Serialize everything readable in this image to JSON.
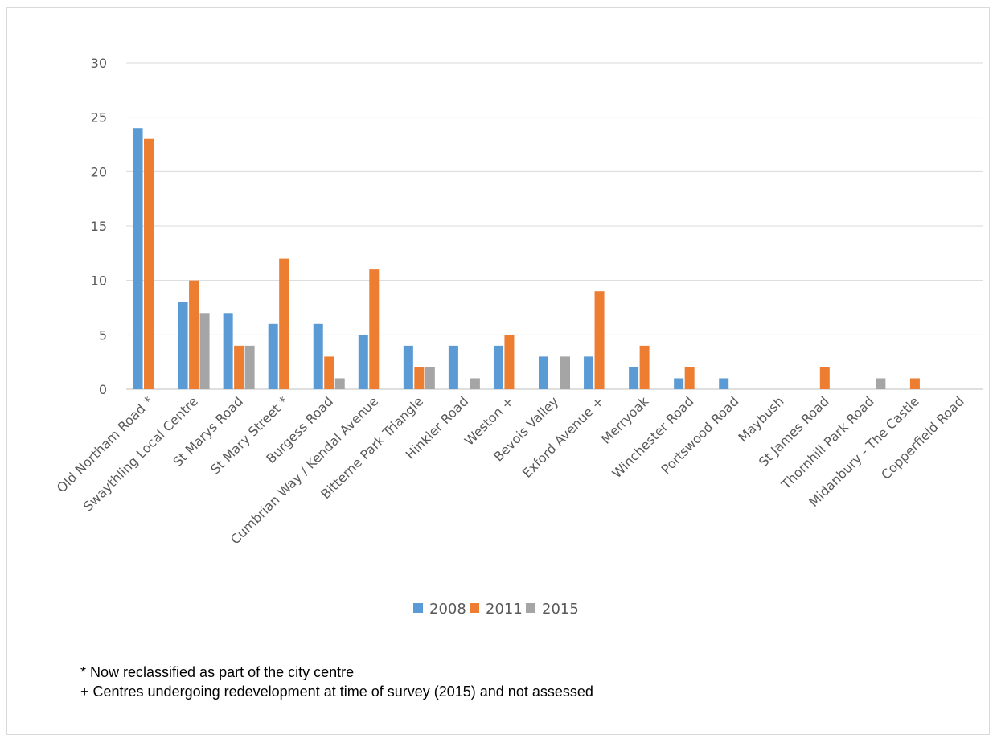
{
  "chart_data": {
    "type": "bar",
    "title": "",
    "xlabel": "",
    "ylabel": "",
    "ylim": [
      0,
      30
    ],
    "yticks": [
      0,
      5,
      10,
      15,
      20,
      25,
      30
    ],
    "grid": true,
    "legend_position": "bottom",
    "categories": [
      "Old Northam Road *",
      "Swaythling Local Centre",
      "St Marys Road",
      "St Mary Street *",
      "Burgess Road",
      "Cumbrian Way / Kendal Avenue",
      "Bitterne Park Triangle",
      "Hinkler Road",
      "Weston +",
      "Bevois Valley",
      "Exford Avenue +",
      "Merryoak",
      "Winchester Road",
      "Portswood Road",
      "Maybush",
      "St James Road",
      "Thornhill Park Road",
      "Midanbury - The Castle",
      "Copperfield Road"
    ],
    "series": [
      {
        "name": "2008",
        "color": "#5b9bd5",
        "values": [
          24,
          8,
          7,
          6,
          6,
          5,
          4,
          4,
          4,
          3,
          3,
          2,
          1,
          1,
          null,
          null,
          null,
          null,
          null
        ]
      },
      {
        "name": "2011",
        "color": "#ed7d31",
        "values": [
          23,
          10,
          4,
          12,
          3,
          11,
          2,
          null,
          5,
          null,
          9,
          4,
          2,
          null,
          null,
          2,
          null,
          1,
          null
        ]
      },
      {
        "name": "2015",
        "color": "#a5a5a5",
        "values": [
          null,
          7,
          4,
          null,
          1,
          null,
          2,
          1,
          null,
          3,
          null,
          null,
          null,
          null,
          null,
          null,
          1,
          null,
          null
        ]
      }
    ]
  },
  "notes": {
    "note1": "* Now reclassified as part of the city centre",
    "note2": "+ Centres undergoing redevelopment at time of survey (2015) and not assessed"
  }
}
